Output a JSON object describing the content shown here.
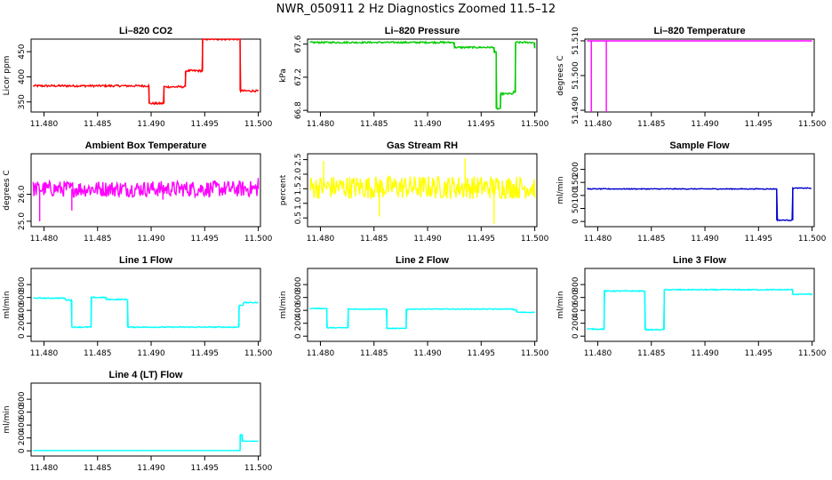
{
  "figure": {
    "title": "NWR_050911  2 Hz Diagnostics Zoomed 11.5–12"
  },
  "chart_data": [
    {
      "id": "co2",
      "type": "line",
      "title": "Li–820 CO2",
      "ylabel": "Licor ppm",
      "color": "#ff0000",
      "xlim": [
        11.4788,
        11.5002
      ],
      "xticks": [
        11.48,
        11.485,
        11.49,
        11.495,
        11.5
      ],
      "ylim": [
        330,
        475
      ],
      "yticks": [
        350,
        400,
        450
      ],
      "steps": [
        [
          11.479,
          382
        ],
        [
          11.4898,
          347
        ],
        [
          11.4912,
          380
        ],
        [
          11.4932,
          412
        ],
        [
          11.4948,
          475
        ],
        [
          11.4983,
          372
        ],
        [
          11.5,
          372
        ]
      ],
      "noise": 2,
      "spikes": []
    },
    {
      "id": "pressure",
      "type": "line",
      "title": "Li–820 Pressure",
      "ylabel": "kPa",
      "color": "#00cc00",
      "xlim": [
        11.4788,
        11.5002
      ],
      "xticks": [
        11.48,
        11.485,
        11.49,
        11.495,
        11.5
      ],
      "ylim": [
        66.78,
        67.66
      ],
      "yticks": [
        66.8,
        67.2,
        67.6
      ],
      "ytick_labels": [
        "66.8",
        "67.2",
        "67.6"
      ],
      "steps": [
        [
          11.479,
          67.62
        ],
        [
          11.4845,
          67.62
        ],
        [
          11.4925,
          67.56
        ],
        [
          11.4962,
          67.5
        ],
        [
          11.4964,
          66.82
        ],
        [
          11.4968,
          67.0
        ],
        [
          11.498,
          67.02
        ],
        [
          11.4982,
          67.62
        ],
        [
          11.5,
          67.55
        ]
      ],
      "noise": 0.01,
      "spikes": []
    },
    {
      "id": "licortemp",
      "type": "line",
      "title": "Li–820 Temperature",
      "ylabel": "degrees C",
      "color": "#ff00ff",
      "xlim": [
        11.4788,
        11.5002
      ],
      "xticks": [
        11.48,
        11.485,
        11.49,
        11.495,
        11.5
      ],
      "ylim": [
        51.4895,
        51.5105
      ],
      "yticks": [
        51.49,
        51.5,
        51.51
      ],
      "ytick_labels": [
        "51.490",
        "51.500",
        "51.510"
      ],
      "steps": [
        [
          11.479,
          51.51
        ],
        [
          11.5,
          51.51
        ]
      ],
      "noise": 0,
      "spikes": [
        [
          11.4794,
          51.4895
        ],
        [
          11.4808,
          51.4895
        ]
      ]
    },
    {
      "id": "boxtemp",
      "type": "line",
      "title": "Ambient Box Temperature",
      "ylabel": "degrees C",
      "color": "#ff00ff",
      "xlim": [
        11.4788,
        11.5002
      ],
      "xticks": [
        11.48,
        11.485,
        11.49,
        11.495,
        11.5
      ],
      "ylim": [
        24.8,
        27.5
      ],
      "yticks": [
        25.0,
        26.0
      ],
      "ytick_labels": [
        "25.0",
        "26.0"
      ],
      "steps": [
        [
          11.479,
          26.2
        ],
        [
          11.5,
          26.5
        ]
      ],
      "noise": 0.3,
      "spikes": [
        [
          11.4796,
          25.0
        ],
        [
          11.4826,
          25.4
        ],
        [
          11.4911,
          25.8
        ]
      ]
    },
    {
      "id": "rh",
      "type": "line",
      "title": "Gas Stream RH",
      "ylabel": "percent",
      "color": "#ffff00",
      "xlim": [
        11.4788,
        11.5002
      ],
      "xticks": [
        11.48,
        11.485,
        11.49,
        11.495,
        11.5
      ],
      "ylim": [
        0.2,
        2.7
      ],
      "yticks": [
        0.5,
        1.0,
        1.5,
        2.0,
        2.5
      ],
      "ytick_labels": [
        "0.5",
        "1.0",
        "1.5",
        "2.0",
        "2.5"
      ],
      "steps": [
        [
          11.479,
          1.55
        ],
        [
          11.5,
          1.55
        ]
      ],
      "noise": 0.4,
      "spikes": [
        [
          11.4803,
          2.45
        ],
        [
          11.4855,
          0.55
        ],
        [
          11.4935,
          2.55
        ],
        [
          11.4962,
          0.3
        ]
      ]
    },
    {
      "id": "sampleflow",
      "type": "line",
      "title": "Sample Flow",
      "ylabel": "ml/min",
      "color": "#0000cc",
      "xlim": [
        11.4788,
        11.5002
      ],
      "xticks": [
        11.48,
        11.485,
        11.49,
        11.495,
        11.5
      ],
      "ylim": [
        -20,
        260
      ],
      "yticks": [
        0,
        50,
        100,
        150,
        200
      ],
      "steps": [
        [
          11.479,
          125
        ],
        [
          11.4966,
          125
        ],
        [
          11.4967,
          5
        ],
        [
          11.4981,
          5
        ],
        [
          11.4982,
          128
        ],
        [
          11.4999,
          125
        ]
      ],
      "noise": 1.5,
      "spikes": []
    },
    {
      "id": "line1",
      "type": "line",
      "title": "Line 1 Flow",
      "ylabel": "ml/min",
      "color": "#00ffff",
      "xlim": [
        11.4788,
        11.5002
      ],
      "xticks": [
        11.48,
        11.485,
        11.49,
        11.495,
        11.5
      ],
      "ylim": [
        -80,
        1050
      ],
      "yticks": [
        0,
        200,
        400,
        600,
        800
      ],
      "steps": [
        [
          11.479,
          590
        ],
        [
          11.481,
          590
        ],
        [
          11.482,
          560
        ],
        [
          11.4826,
          140
        ],
        [
          11.4844,
          600
        ],
        [
          11.4858,
          570
        ],
        [
          11.4878,
          140
        ],
        [
          11.4982,
          480
        ],
        [
          11.4986,
          520
        ],
        [
          11.5,
          520
        ]
      ],
      "noise": 8,
      "spikes": []
    },
    {
      "id": "line2",
      "type": "line",
      "title": "Line 2 Flow",
      "ylabel": "ml/min",
      "color": "#00ffff",
      "xlim": [
        11.4788,
        11.5002
      ],
      "xticks": [
        11.48,
        11.485,
        11.49,
        11.495,
        11.5
      ],
      "ylim": [
        -80,
        1050
      ],
      "yticks": [
        0,
        200,
        400,
        600,
        800
      ],
      "steps": [
        [
          11.479,
          430
        ],
        [
          11.4806,
          130
        ],
        [
          11.4826,
          420
        ],
        [
          11.4862,
          120
        ],
        [
          11.488,
          420
        ],
        [
          11.498,
          410
        ],
        [
          11.4983,
          370
        ],
        [
          11.5,
          370
        ]
      ],
      "noise": 6,
      "spikes": []
    },
    {
      "id": "line3",
      "type": "line",
      "title": "Line 3 Flow",
      "ylabel": "ml/min",
      "color": "#00ffff",
      "xlim": [
        11.4788,
        11.5002
      ],
      "xticks": [
        11.48,
        11.485,
        11.49,
        11.495,
        11.5
      ],
      "ylim": [
        -80,
        1050
      ],
      "yticks": [
        0,
        200,
        400,
        600,
        800
      ],
      "steps": [
        [
          11.479,
          110
        ],
        [
          11.4806,
          700
        ],
        [
          11.4844,
          100
        ],
        [
          11.4862,
          720
        ],
        [
          11.498,
          720
        ],
        [
          11.4982,
          650
        ],
        [
          11.5,
          640
        ]
      ],
      "noise": 8,
      "spikes": []
    },
    {
      "id": "line4",
      "type": "line",
      "title": "Line 4 (LT) Flow",
      "ylabel": "ml/min",
      "color": "#00ffff",
      "xlim": [
        11.4788,
        11.5002
      ],
      "xticks": [
        11.48,
        11.485,
        11.49,
        11.495,
        11.5
      ],
      "ylim": [
        -80,
        1050
      ],
      "yticks": [
        0,
        200,
        400,
        600,
        800
      ],
      "steps": [
        [
          11.479,
          5
        ],
        [
          11.4982,
          5
        ],
        [
          11.4983,
          250
        ],
        [
          11.4985,
          150
        ],
        [
          11.5,
          150
        ]
      ],
      "noise": 1,
      "spikes": []
    }
  ]
}
